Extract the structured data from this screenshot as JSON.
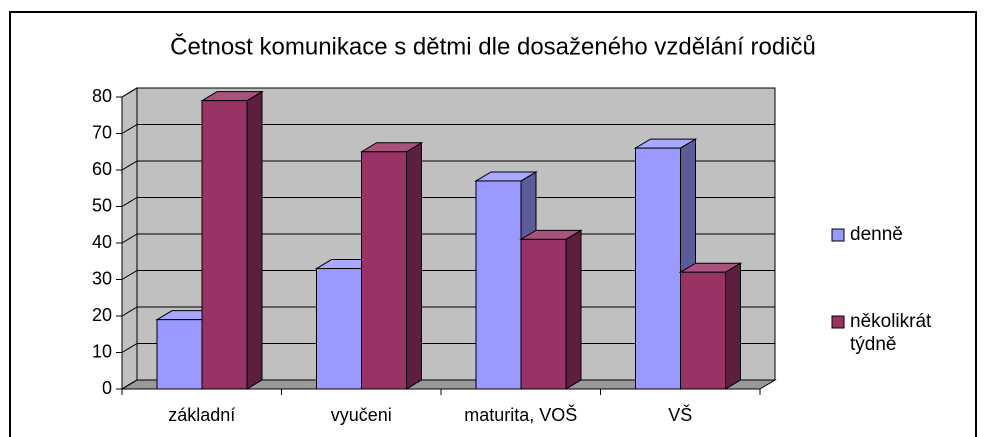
{
  "chart_data": {
    "type": "bar3d",
    "title": "Četnost komunikace s dětmi dle dosaženého vzdělání rodičů",
    "categories": [
      "základní",
      "vyučeni",
      "maturita, VOŠ",
      "VŠ"
    ],
    "series": [
      {
        "name": "denně",
        "color": "#9999ff",
        "values": [
          19,
          33,
          57,
          66
        ]
      },
      {
        "name": "několikrát týdně",
        "color": "#993366",
        "values": [
          79,
          65,
          41,
          32
        ]
      }
    ],
    "ylim": [
      0,
      80
    ],
    "yticks": [
      0,
      10,
      20,
      30,
      40,
      50,
      60,
      70,
      80
    ],
    "grid": true,
    "legend": "right"
  }
}
